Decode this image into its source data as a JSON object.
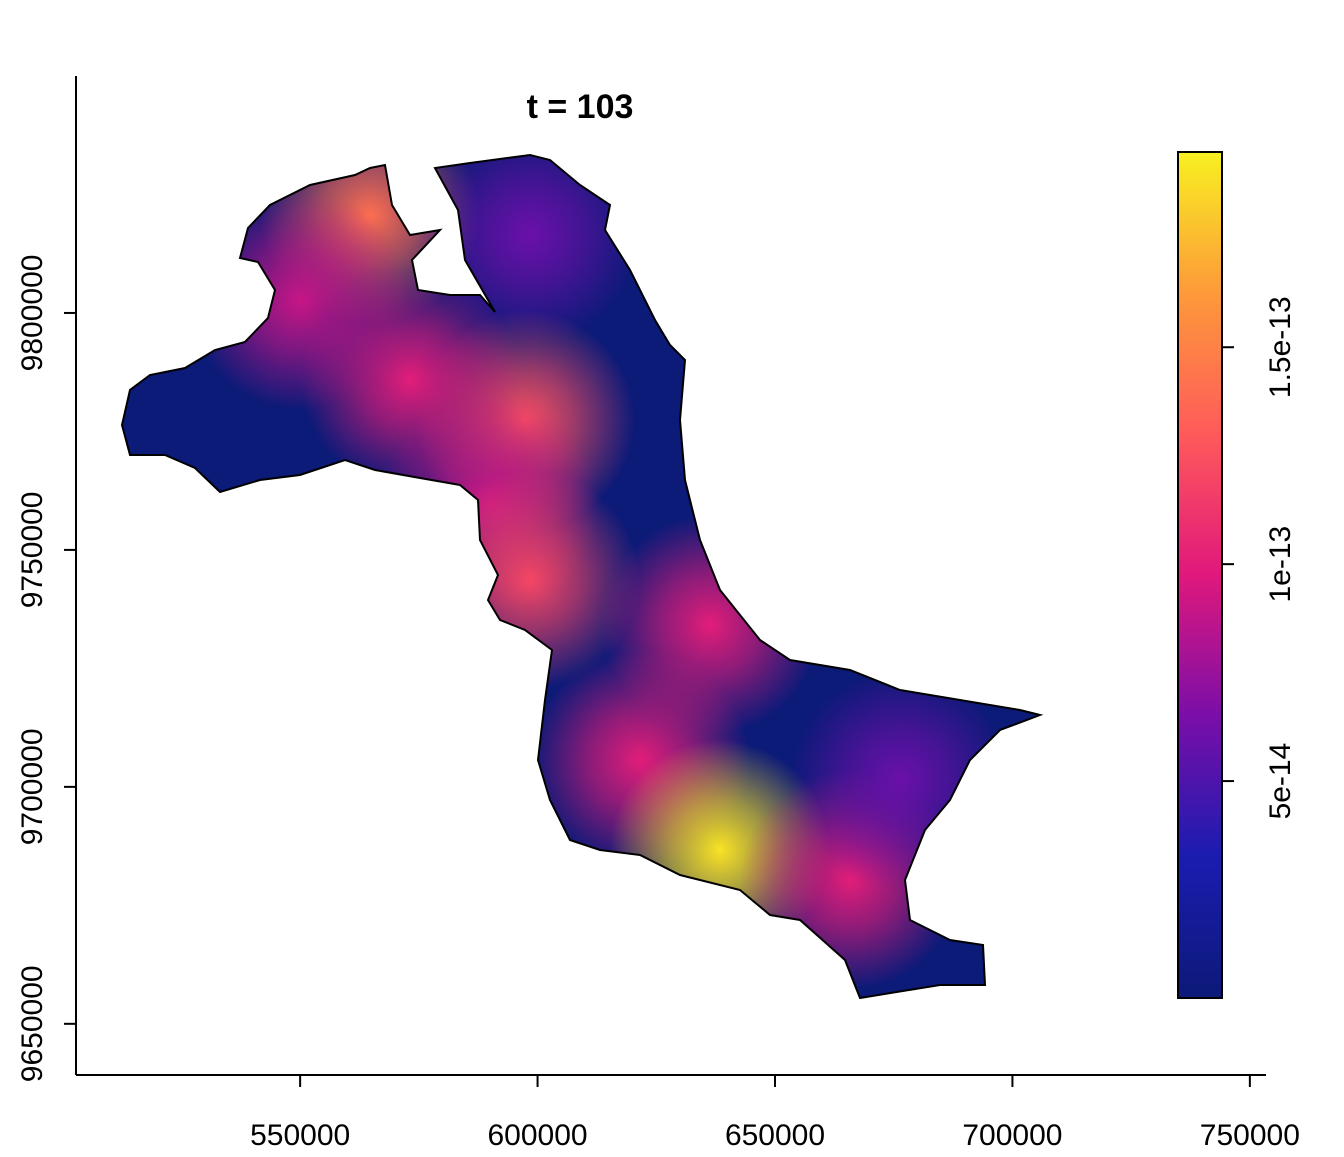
{
  "chart_data": {
    "type": "heatmap",
    "title": "t = 103",
    "xlim": [
      502800,
      753400
    ],
    "ylim": [
      9639200,
      9850000
    ],
    "xticks": [
      550000,
      600000,
      650000,
      700000,
      750000
    ],
    "yticks": [
      9650000,
      9700000,
      9750000,
      9800000
    ],
    "zlim": [
      0,
      1.95e-13
    ],
    "zticks": [
      5e-14,
      1e-13,
      1.5e-13
    ],
    "colors": [
      "#0c1a78",
      "#1a1cb0",
      "#7a0ea8",
      "#e0187c",
      "#ff5a5a",
      "#fd9a3a",
      "#f8f020"
    ],
    "hotspots": [
      {
        "x": 564700,
        "y": 9820700,
        "value": 1.4e-13
      },
      {
        "x": 598400,
        "y": 9816500,
        "value": 6e-14
      },
      {
        "x": 597400,
        "y": 9777400,
        "value": 1.25e-13
      },
      {
        "x": 573200,
        "y": 9785900,
        "value": 1e-13
      },
      {
        "x": 550000,
        "y": 9802700,
        "value": 9e-14
      },
      {
        "x": 590000,
        "y": 9760000,
        "value": 9e-14
      },
      {
        "x": 598400,
        "y": 9743700,
        "value": 1.2e-13
      },
      {
        "x": 636300,
        "y": 9734200,
        "value": 1e-13
      },
      {
        "x": 621600,
        "y": 9705700,
        "value": 1e-13
      },
      {
        "x": 638400,
        "y": 9686700,
        "value": 1.9e-13
      },
      {
        "x": 665800,
        "y": 9680400,
        "value": 1e-13
      },
      {
        "x": 676300,
        "y": 9701500,
        "value": 6e-14
      }
    ]
  }
}
